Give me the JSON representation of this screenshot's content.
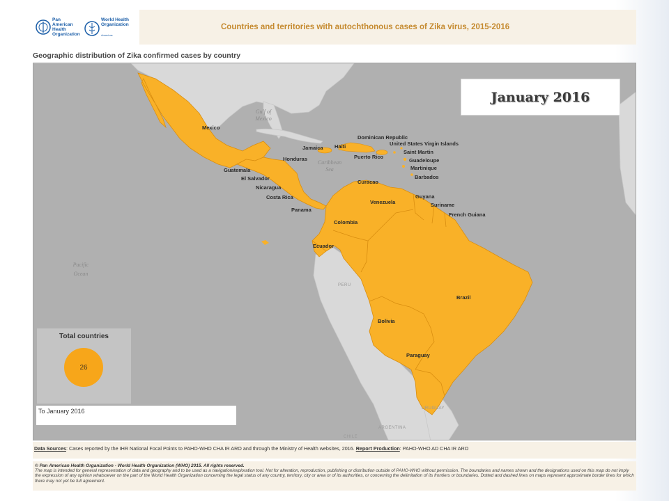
{
  "header": {
    "logo_paho_text": "Pan American Health Organization",
    "logo_who_text": "World Health Organization",
    "logo_who_sub": "Americas",
    "title": "Countries and territories with autochthonous cases of Zika virus, 2015-2016"
  },
  "subtitle": "Geographic distribution of Zika confirmed cases by country",
  "map": {
    "month": "January 2016",
    "affected_color": "#f9b128",
    "land_color": "#d9d9d9",
    "water_color": "#b0b0b0",
    "country_labels": {
      "mexico": "Mexico",
      "guatemala": "Guatemala",
      "el_salvador": "El Salvador",
      "honduras": "Honduras",
      "nicaragua": "Nicaragua",
      "costa_rica": "Costa Rica",
      "panama": "Panama",
      "jamaica": "Jamaica",
      "haiti": "Haiti",
      "dominican_republic": "Dominican Republic",
      "puerto_rico": "Puerto Rico",
      "usvi": "United States Virgin Islands",
      "saint_martin": "Saint Martin",
      "guadeloupe": "Guadeloupe",
      "martinique": "Martinique",
      "barbados": "Barbados",
      "curacao": "Curacao",
      "venezuela": "Venezuela",
      "guyana": "Guyana",
      "suriname": "Suriname",
      "french_guiana": "French Guiana",
      "colombia": "Colombia",
      "ecuador": "Ecuador",
      "brazil": "Brazil",
      "bolivia": "Bolivia",
      "paraguay": "Paraguay"
    },
    "ocean_labels": {
      "gulf_line1": "Gulf of",
      "gulf_line2": "Mexico",
      "caribbean_line1": "Caribbean",
      "caribbean_line2": "Sea",
      "pacific_line1": "Pacific",
      "pacific_line2": "Ocean"
    },
    "minor_labels": {
      "peru": "PERU",
      "chile": "CHILE",
      "argentina": "ARGENTINA",
      "uruguay": "URUGUAY"
    }
  },
  "total": {
    "label": "Total countries",
    "count": "26"
  },
  "period": "To January 2016",
  "data_sources": {
    "label": "Data Sources",
    "text": ": Cases reported by the IHR National Focal Points to PAHO-WHO CHA IR ARO and through the Ministry of Health websites, 2016. ",
    "production_label": "Report Production",
    "production_text": ": PAHO-WHO AD CHA IR ARO"
  },
  "legal": {
    "head": "© Pan American Health Organization - World Health Organization (WHO) 2015. All rights reserved.",
    "body": "The map is intended for general representation of data and geography and to be used as a navigation/exploration tool. Not for alteration, reproduction, publishing or distribution outside of PAHO-WHO without permission. The boundaries and names shown and the designations used on this map do not imply the expression of any opinion whatsoever on the part of the World Health Organization concerning the legal status of any country, territory, city or area or of its authorities, or concerning the delimitation of its frontiers or boundaries. Dotted and dashed lines on maps represent approximate border lines for which there may not yet be full agreement."
  }
}
